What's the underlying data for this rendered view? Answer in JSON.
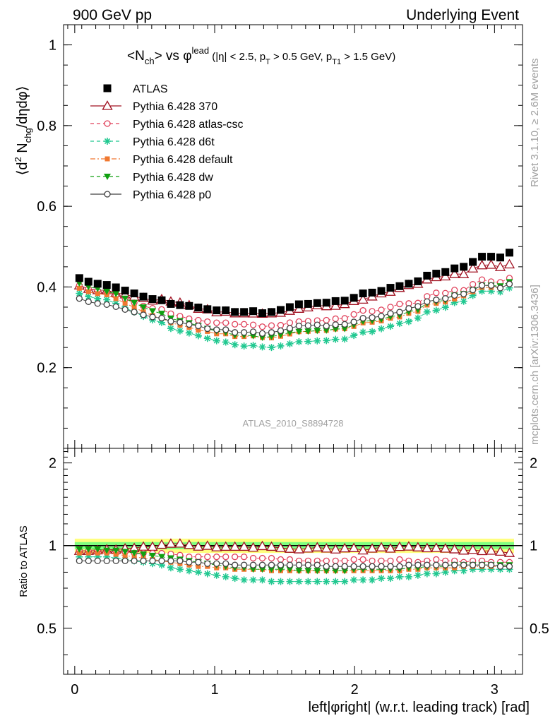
{
  "header": {
    "left": "900 GeV pp",
    "right": "Underlying Event"
  },
  "side_labels": {
    "rivet": "Rivet 3.1.10, ≥ 2.6M events",
    "mcplots": "mcplots.cern.ch [arXiv:1306.3436]"
  },
  "watermark": "ATLAS_2010_S8894728",
  "colors": {
    "ATLAS": "#000000",
    "p370": "#a01020",
    "atlascsc": "#e0405a",
    "d6t": "#20c890",
    "default": "#f07830",
    "dw": "#10a010",
    "p0": "#404040",
    "band_yellow": "#ffff80",
    "band_green": "#80ff80"
  },
  "chart_data": {
    "type": "scatter",
    "title": {
      "a": "<N",
      "a_sub": "ch",
      "b": "> vs φ",
      "b_sup": "lead",
      "c": " (|η| < 2.5, p",
      "c_sub": "T",
      "d": " > 0.5 GeV, p",
      "d_sub": "T1",
      "e": " > 1.5 GeV)"
    },
    "ylabel": {
      "a": "⟨d",
      "a_sup": "2",
      "b": " N",
      "b_sub": "chg",
      "c": "/dηdφ⟩"
    },
    "xlabel": "left|φright| (w.r.t. leading track) [rad]",
    "xlim": [
      -0.08,
      3.2
    ],
    "ylim": [
      0,
      1.05
    ],
    "ratio_ylim": [
      0.34,
      2.26
    ],
    "ratio_ylabel": "Ratio to ATLAS",
    "x_ticks": [
      "0",
      "1",
      "2",
      "3"
    ],
    "y_ticks": [
      "0.2",
      "0.4",
      "0.6",
      "0.8",
      "1"
    ],
    "y_tick_values": [
      0.2,
      0.4,
      0.6,
      0.8,
      1.0
    ],
    "ratio_ticks": [
      "0.5",
      "1",
      "2"
    ],
    "ratio_tick_values": [
      0.5,
      1,
      2
    ],
    "n_points": 48,
    "x_start": 0.0327,
    "x_step": 0.0654,
    "reference": {
      "name": "ATLAS",
      "values": [
        0.422,
        0.413,
        0.408,
        0.405,
        0.399,
        0.391,
        0.384,
        0.376,
        0.37,
        0.367,
        0.358,
        0.355,
        0.353,
        0.349,
        0.345,
        0.342,
        0.342,
        0.338,
        0.338,
        0.34,
        0.335,
        0.338,
        0.343,
        0.35,
        0.357,
        0.358,
        0.36,
        0.361,
        0.365,
        0.366,
        0.373,
        0.384,
        0.386,
        0.39,
        0.398,
        0.402,
        0.408,
        0.414,
        0.428,
        0.433,
        0.437,
        0.446,
        0.45,
        0.462,
        0.475,
        0.475,
        0.473,
        0.485
      ],
      "band_green": [
        0.97,
        1.03
      ],
      "band_yellow": [
        0.94,
        1.06
      ]
    },
    "series": [
      {
        "name": "Pythia 6.428 370",
        "key": "p370",
        "marker": "triangle-open",
        "line": "solid",
        "amplitude": 0.02,
        "ratio": [
          0.957,
          0.957,
          0.961,
          0.968,
          0.966,
          0.976,
          0.979,
          0.991,
          0.99,
          1.007,
          1.016,
          1.017,
          1.005,
          0.991,
          0.998,
          0.986,
          0.99,
          0.99,
          0.99,
          0.983,
          0.996,
          0.99,
          0.98,
          0.974,
          0.969,
          0.976,
          0.985,
          0.976,
          0.968,
          0.977,
          0.979,
          0.96,
          0.975,
          0.985,
          0.975,
          0.989,
          0.992,
          0.985,
          0.978,
          0.98,
          0.975,
          0.969,
          0.959,
          0.965,
          0.955,
          0.958,
          0.95,
          0.94
        ]
      },
      {
        "name": "Pythia 6.428 atlas-csc",
        "key": "atlascsc",
        "marker": "circle-open",
        "line": "dashed",
        "amplitude": 0.02,
        "ratio": [
          0.957,
          0.957,
          0.956,
          0.955,
          0.95,
          0.947,
          0.94,
          0.938,
          0.938,
          0.938,
          0.932,
          0.923,
          0.91,
          0.91,
          0.91,
          0.91,
          0.91,
          0.91,
          0.91,
          0.9,
          0.9,
          0.9,
          0.89,
          0.89,
          0.88,
          0.88,
          0.88,
          0.88,
          0.88,
          0.88,
          0.89,
          0.89,
          0.88,
          0.88,
          0.88,
          0.89,
          0.88,
          0.87,
          0.88,
          0.89,
          0.88,
          0.88,
          0.87,
          0.88,
          0.88,
          0.87,
          0.87,
          0.87
        ]
      },
      {
        "name": "Pythia 6.428 d6t",
        "key": "d6t",
        "marker": "star",
        "line": "dashed",
        "amplitude": 0.02,
        "ratio": [
          0.91,
          0.91,
          0.91,
          0.91,
          0.9,
          0.89,
          0.88,
          0.87,
          0.86,
          0.85,
          0.83,
          0.82,
          0.81,
          0.8,
          0.79,
          0.78,
          0.77,
          0.76,
          0.75,
          0.75,
          0.75,
          0.74,
          0.74,
          0.74,
          0.74,
          0.74,
          0.74,
          0.74,
          0.74,
          0.74,
          0.75,
          0.75,
          0.75,
          0.76,
          0.76,
          0.77,
          0.77,
          0.78,
          0.79,
          0.79,
          0.8,
          0.81,
          0.81,
          0.82,
          0.82,
          0.82,
          0.82,
          0.82
        ]
      },
      {
        "name": "Pythia 6.428 default",
        "key": "default",
        "marker": "square",
        "line": "dashdot",
        "amplitude": 0.02,
        "ratio": [
          0.94,
          0.94,
          0.94,
          0.94,
          0.93,
          0.92,
          0.91,
          0.9,
          0.89,
          0.88,
          0.87,
          0.86,
          0.85,
          0.84,
          0.84,
          0.83,
          0.83,
          0.82,
          0.82,
          0.82,
          0.82,
          0.81,
          0.81,
          0.81,
          0.81,
          0.81,
          0.81,
          0.81,
          0.81,
          0.81,
          0.81,
          0.81,
          0.81,
          0.81,
          0.81,
          0.81,
          0.82,
          0.82,
          0.83,
          0.83,
          0.83,
          0.83,
          0.84,
          0.84,
          0.84,
          0.84,
          0.84,
          0.84
        ]
      },
      {
        "name": "Pythia 6.428 dw",
        "key": "dw",
        "marker": "triangle-down",
        "line": "dashed",
        "amplitude": 0.02,
        "ratio": [
          0.97,
          0.97,
          0.97,
          0.96,
          0.96,
          0.95,
          0.94,
          0.93,
          0.92,
          0.91,
          0.9,
          0.89,
          0.88,
          0.87,
          0.86,
          0.85,
          0.84,
          0.83,
          0.83,
          0.82,
          0.82,
          0.82,
          0.82,
          0.82,
          0.81,
          0.81,
          0.81,
          0.81,
          0.81,
          0.81,
          0.82,
          0.82,
          0.82,
          0.82,
          0.82,
          0.82,
          0.83,
          0.83,
          0.84,
          0.84,
          0.84,
          0.85,
          0.85,
          0.85,
          0.85,
          0.85,
          0.85,
          0.85
        ]
      },
      {
        "name": "Pythia 6.428 p0",
        "key": "p0",
        "marker": "circle-open",
        "line": "solid",
        "amplitude": 0.02,
        "ratio": [
          0.88,
          0.88,
          0.88,
          0.88,
          0.88,
          0.88,
          0.88,
          0.88,
          0.88,
          0.88,
          0.88,
          0.88,
          0.87,
          0.87,
          0.86,
          0.86,
          0.86,
          0.85,
          0.85,
          0.85,
          0.85,
          0.85,
          0.85,
          0.85,
          0.85,
          0.85,
          0.85,
          0.84,
          0.84,
          0.84,
          0.84,
          0.84,
          0.84,
          0.84,
          0.84,
          0.84,
          0.85,
          0.85,
          0.85,
          0.85,
          0.85,
          0.85,
          0.85,
          0.85,
          0.85,
          0.85,
          0.84,
          0.84
        ]
      }
    ]
  }
}
